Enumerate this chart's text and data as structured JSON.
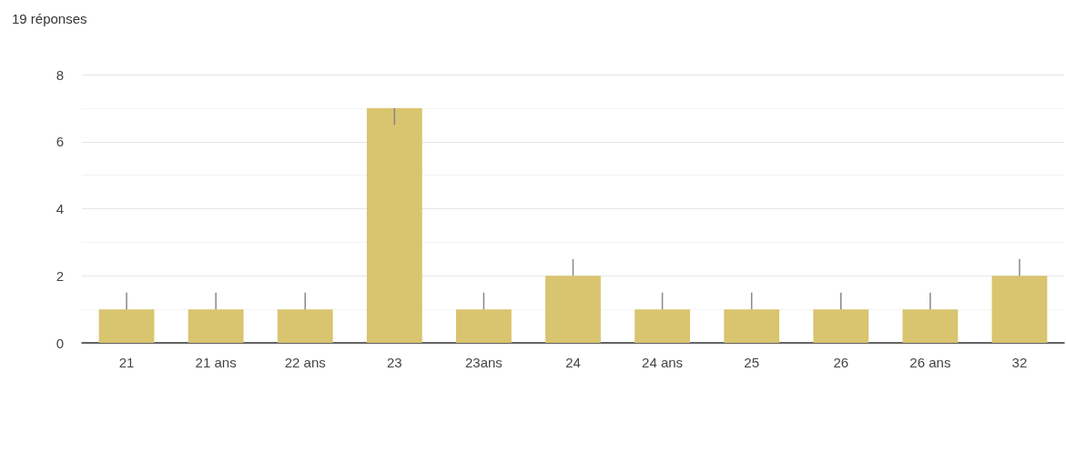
{
  "chart_data": {
    "type": "bar",
    "title": "19 réponses",
    "categories": [
      "21",
      "21 ans",
      "22 ans",
      "23",
      "23ans",
      "24",
      "24 ans",
      "25",
      "26",
      "26 ans",
      "32"
    ],
    "values": [
      1,
      1,
      1,
      7,
      1,
      2,
      1,
      1,
      1,
      1,
      2
    ],
    "errors": [
      [
        1,
        1.5
      ],
      [
        1,
        1.5
      ],
      [
        1,
        1.5
      ],
      [
        6.5,
        7
      ],
      [
        1,
        1.5
      ],
      [
        2,
        2.5
      ],
      [
        1,
        1.5
      ],
      [
        1,
        1.5
      ],
      [
        1,
        1.5
      ],
      [
        1,
        1.5
      ],
      [
        2,
        2.5
      ]
    ],
    "color": "#d9c46f",
    "ylim": [
      0,
      8
    ],
    "yticks": [
      0,
      {
        "value": 1,
        "label": null
      },
      2,
      {
        "value": 3,
        "label": null
      },
      4,
      {
        "value": 5,
        "label": null
      },
      6,
      {
        "value": 7,
        "label": null
      },
      8
    ],
    "grid": true
  }
}
